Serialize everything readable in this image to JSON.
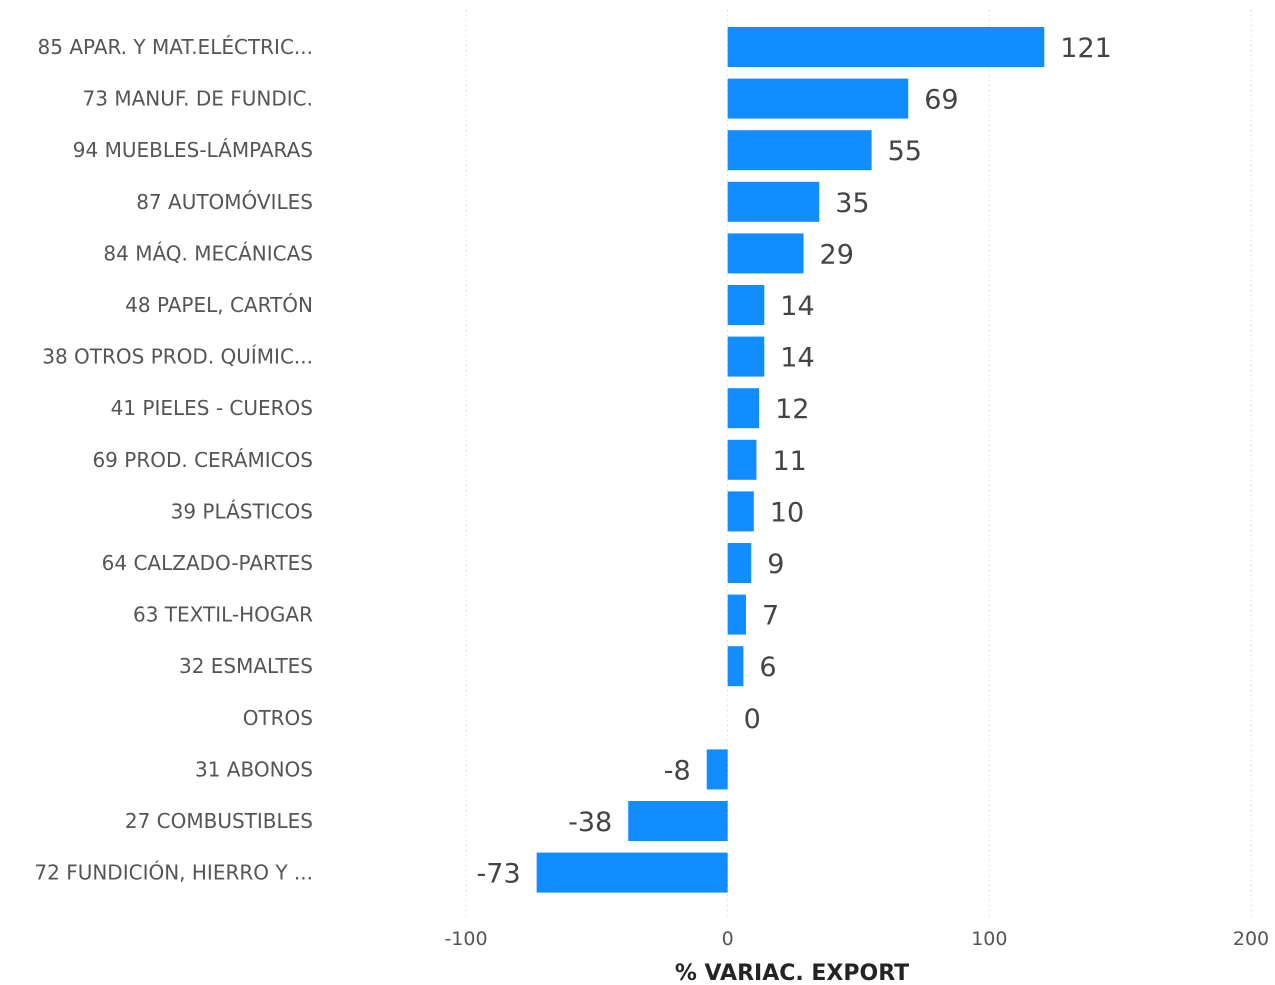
{
  "chart_data": {
    "type": "bar",
    "orientation": "horizontal",
    "categories": [
      "85 APAR. Y MAT.ELÉCTRIC...",
      "73 MANUF. DE FUNDIC.",
      "94 MUEBLES-LÁMPARAS",
      "87 AUTOMÓVILES",
      "84 MÁQ. MECÁNICAS",
      "48 PAPEL, CARTÓN",
      "38 OTROS PROD. QUÍMIC...",
      "41 PIELES - CUEROS",
      "69 PROD. CERÁMICOS",
      "39 PLÁSTICOS",
      "64 CALZADO-PARTES",
      "63 TEXTIL-HOGAR",
      "32 ESMALTES",
      "OTROS",
      "31 ABONOS",
      "27 COMBUSTIBLES",
      "72 FUNDICIÓN, HIERRO Y ..."
    ],
    "values": [
      121,
      69,
      55,
      35,
      29,
      14,
      14,
      12,
      11,
      10,
      9,
      7,
      6,
      0,
      -8,
      -38,
      -73
    ],
    "data_labels": [
      "121",
      "69",
      "55",
      "35",
      "29",
      "14",
      "14",
      "12",
      "11",
      "10",
      "9",
      "7",
      "6",
      "0",
      "-8",
      "-38",
      "-73"
    ],
    "xlabel": "% VARIAC. EXPORT",
    "ylabel": "",
    "xlim": [
      -100,
      200
    ],
    "xticks": [
      -100,
      0,
      100,
      200
    ],
    "xtick_labels": [
      "-100",
      "0",
      "100",
      "200"
    ],
    "grid": true,
    "bar_color": "#118DFF"
  }
}
